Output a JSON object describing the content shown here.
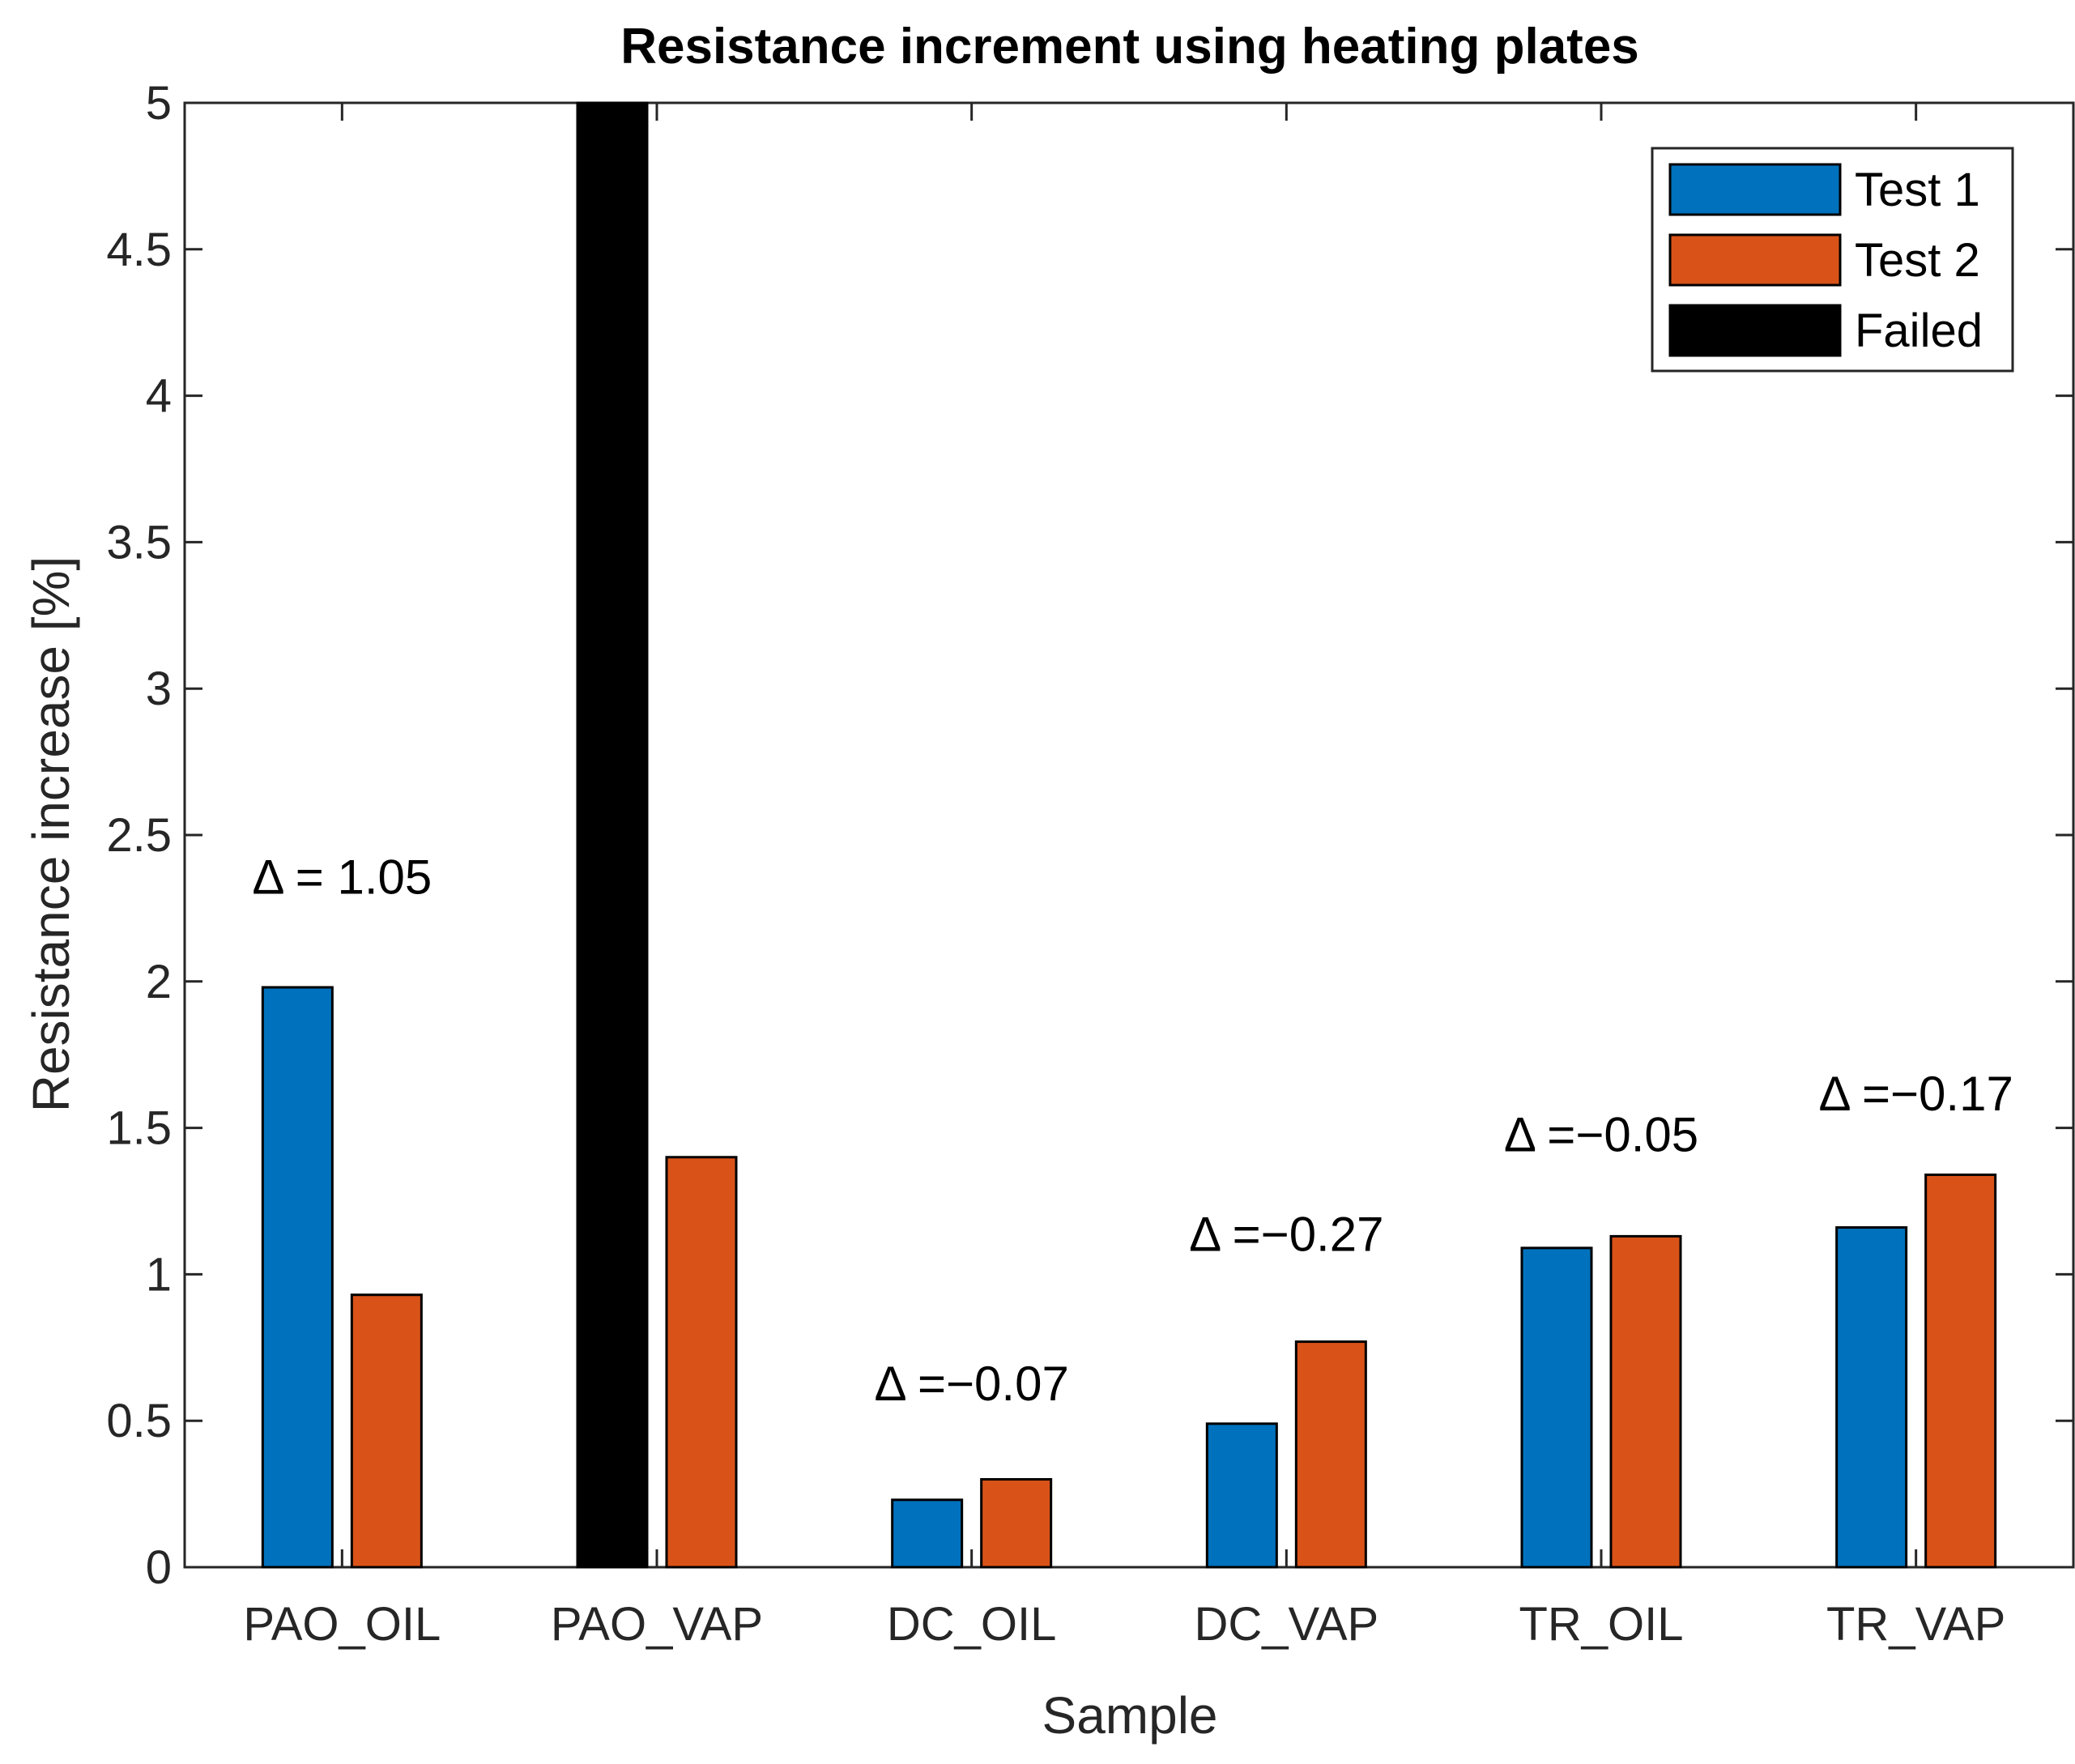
{
  "chart_data": {
    "type": "bar",
    "title": "Resistance increment using heating plates",
    "xlabel": "Sample",
    "ylabel": "Resistance increase [%]",
    "ylim": [
      0,
      5
    ],
    "yticks": [
      0,
      0.5,
      1,
      1.5,
      2,
      2.5,
      3,
      3.5,
      4,
      4.5,
      5
    ],
    "ytick_labels": [
      "0",
      "0.5",
      "1",
      "1.5",
      "2",
      "2.5",
      "3",
      "3.5",
      "4",
      "4.5",
      "5"
    ],
    "categories": [
      "PAO_OIL",
      "PAO_VAP",
      "DC_OIL",
      "DC_VAP",
      "TR_OIL",
      "TR_VAP"
    ],
    "series": [
      {
        "name": "Test 1",
        "color": "#0072BD",
        "values": [
          1.98,
          null,
          0.23,
          0.49,
          1.09,
          1.16
        ]
      },
      {
        "name": "Test 2",
        "color": "#D95319",
        "values": [
          0.93,
          1.4,
          0.3,
          0.77,
          1.13,
          1.34
        ]
      },
      {
        "name": "Failed",
        "color": "#000000",
        "values": [
          null,
          5.0,
          null,
          null,
          null,
          null
        ]
      }
    ],
    "annotations": [
      {
        "category": "PAO_OIL",
        "text": "Δ = 1.05",
        "y": 2.3
      },
      {
        "category": "DC_OIL",
        "text": "Δ =−0.07",
        "y": 0.57
      },
      {
        "category": "DC_VAP",
        "text": "Δ =−0.27",
        "y": 1.08
      },
      {
        "category": "TR_OIL",
        "text": "Δ =−0.05",
        "y": 1.42
      },
      {
        "category": "TR_VAP",
        "text": "Δ =−0.17",
        "y": 1.56
      }
    ],
    "legend_position": "top-right",
    "grid": false
  }
}
